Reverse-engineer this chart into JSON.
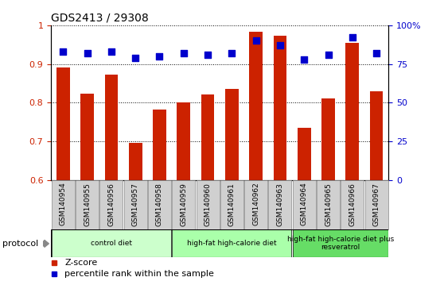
{
  "title": "GDS2413 / 29308",
  "samples": [
    "GSM140954",
    "GSM140955",
    "GSM140956",
    "GSM140957",
    "GSM140958",
    "GSM140959",
    "GSM140960",
    "GSM140961",
    "GSM140962",
    "GSM140963",
    "GSM140964",
    "GSM140965",
    "GSM140966",
    "GSM140967"
  ],
  "zscore": [
    0.89,
    0.823,
    0.873,
    0.696,
    0.781,
    0.801,
    0.82,
    0.835,
    0.984,
    0.974,
    0.735,
    0.81,
    0.955,
    0.83
  ],
  "percentile": [
    83,
    82,
    83,
    79,
    80,
    82,
    81,
    82,
    90,
    87,
    78,
    81,
    92,
    82
  ],
  "bar_color": "#cc2200",
  "dot_color": "#0000cc",
  "ylim_left": [
    0.6,
    1.0
  ],
  "ylim_right": [
    0,
    100
  ],
  "yticks_left": [
    0.6,
    0.7,
    0.8,
    0.9,
    1.0
  ],
  "ytick_labels_left": [
    "0.6",
    "0.7",
    "0.8",
    "0.9",
    "1"
  ],
  "yticks_right": [
    0,
    25,
    50,
    75,
    100
  ],
  "ytick_labels_right": [
    "0",
    "25",
    "50",
    "75",
    "100%"
  ],
  "groups": [
    {
      "label": "control diet",
      "start": 0,
      "end": 4,
      "color": "#ccffcc"
    },
    {
      "label": "high-fat high-calorie diet",
      "start": 5,
      "end": 9,
      "color": "#aaffaa"
    },
    {
      "label": "high-fat high-calorie diet plus\nresveratrol",
      "start": 10,
      "end": 13,
      "color": "#66dd66"
    }
  ],
  "protocol_label": "protocol",
  "legend_zscore": "Z-score",
  "legend_percentile": "percentile rank within the sample",
  "bar_color_hex": "#cc2200",
  "dot_color_hex": "#0000cc",
  "tick_label_color_left": "#cc2200",
  "tick_label_color_right": "#0000cc",
  "bar_width": 0.55,
  "dot_size": 35,
  "dot_marker": "s",
  "n_control": 5,
  "n_highfat": 5,
  "n_resveratrol": 4
}
